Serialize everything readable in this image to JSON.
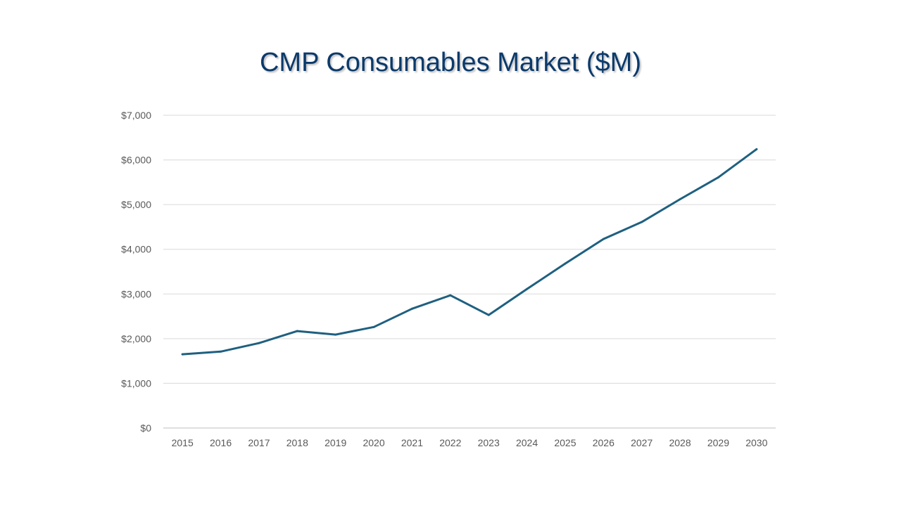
{
  "chart_data": {
    "type": "line",
    "title": "CMP Consumables Market ($M)",
    "xlabel": "",
    "ylabel": "",
    "categories": [
      "2015",
      "2016",
      "2017",
      "2018",
      "2019",
      "2020",
      "2021",
      "2022",
      "2023",
      "2024",
      "2025",
      "2026",
      "2027",
      "2028",
      "2029",
      "2030"
    ],
    "series": [
      {
        "values": [
          1650,
          1710,
          1900,
          2170,
          2090,
          2260,
          2670,
          2970,
          2530,
          3110,
          3680,
          4230,
          4610,
          5120,
          5610,
          6240
        ],
        "color": "#1f6080"
      }
    ],
    "ylim": [
      0,
      7000
    ],
    "y_ticks": [
      0,
      1000,
      2000,
      3000,
      4000,
      5000,
      6000,
      7000
    ],
    "y_tick_labels": [
      "$0",
      "$1,000",
      "$2,000",
      "$3,000",
      "$4,000",
      "$5,000",
      "$6,000",
      "$7,000"
    ],
    "grid": true,
    "legend": "none"
  }
}
